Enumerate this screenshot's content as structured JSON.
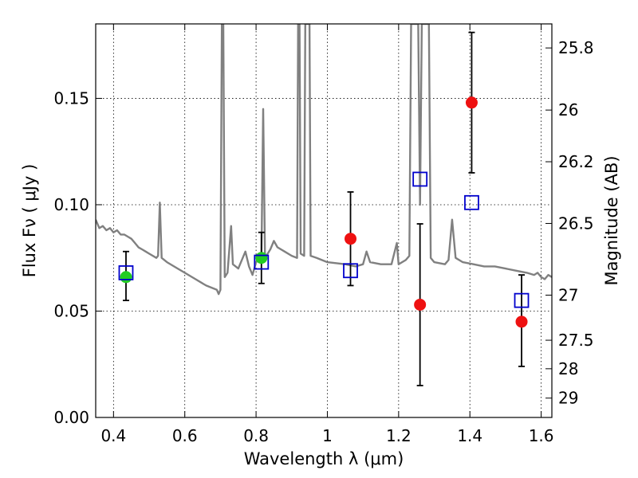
{
  "chart_data": {
    "type": "scatter",
    "xlabel": "Wavelength  λ (μm)",
    "ylabel": "Flux  Fν ( μJy )",
    "y2label": "Magnitude (AB)",
    "xlim": [
      0.35,
      1.63
    ],
    "ylim": [
      0.0,
      0.185
    ],
    "grid": true,
    "x_ticks": [
      0.4,
      0.6,
      0.8,
      1.0,
      1.2,
      1.4,
      1.6
    ],
    "x_tick_labels": [
      "0.4",
      "0.6",
      "0.8",
      "1",
      "1.2",
      "1.4",
      "1.6"
    ],
    "y_ticks": [
      0.0,
      0.05,
      0.1,
      0.15
    ],
    "y_tick_labels": [
      "0.00",
      "0.05",
      "0.10",
      "0.15"
    ],
    "y2_ticks": [
      {
        "label": "25.8",
        "flux": 0.1737
      },
      {
        "label": "26",
        "flux": 0.1445
      },
      {
        "label": "26.2",
        "flux": 0.1202
      },
      {
        "label": "26.5",
        "flux": 0.0912
      },
      {
        "label": "27",
        "flux": 0.0575
      },
      {
        "label": "27.5",
        "flux": 0.0363
      },
      {
        "label": "28",
        "flux": 0.0229
      },
      {
        "label": "29",
        "flux": 0.0091
      }
    ],
    "template_color": "#808080",
    "template_spectrum": [
      [
        0.35,
        0.093
      ],
      [
        0.36,
        0.089
      ],
      [
        0.37,
        0.09
      ],
      [
        0.38,
        0.088
      ],
      [
        0.39,
        0.089
      ],
      [
        0.4,
        0.087
      ],
      [
        0.41,
        0.088
      ],
      [
        0.42,
        0.086
      ],
      [
        0.43,
        0.086
      ],
      [
        0.44,
        0.085
      ],
      [
        0.45,
        0.084
      ],
      [
        0.46,
        0.082
      ],
      [
        0.47,
        0.08
      ],
      [
        0.48,
        0.079
      ],
      [
        0.49,
        0.078
      ],
      [
        0.5,
        0.077
      ],
      [
        0.52,
        0.075
      ],
      [
        0.525,
        0.076
      ],
      [
        0.53,
        0.101
      ],
      [
        0.535,
        0.075
      ],
      [
        0.55,
        0.073
      ],
      [
        0.58,
        0.07
      ],
      [
        0.6,
        0.068
      ],
      [
        0.63,
        0.065
      ],
      [
        0.66,
        0.062
      ],
      [
        0.69,
        0.06
      ],
      [
        0.695,
        0.058
      ],
      [
        0.7,
        0.06
      ],
      [
        0.704,
        0.185
      ],
      [
        0.708,
        0.185
      ],
      [
        0.712,
        0.066
      ],
      [
        0.72,
        0.068
      ],
      [
        0.73,
        0.09
      ],
      [
        0.735,
        0.072
      ],
      [
        0.75,
        0.07
      ],
      [
        0.77,
        0.078
      ],
      [
        0.78,
        0.071
      ],
      [
        0.79,
        0.067
      ],
      [
        0.8,
        0.073
      ],
      [
        0.815,
        0.075
      ],
      [
        0.82,
        0.145
      ],
      [
        0.825,
        0.075
      ],
      [
        0.84,
        0.079
      ],
      [
        0.85,
        0.083
      ],
      [
        0.86,
        0.08
      ],
      [
        0.88,
        0.078
      ],
      [
        0.9,
        0.076
      ],
      [
        0.915,
        0.075
      ],
      [
        0.918,
        0.185
      ],
      [
        0.922,
        0.185
      ],
      [
        0.925,
        0.077
      ],
      [
        0.935,
        0.076
      ],
      [
        0.938,
        0.185
      ],
      [
        0.942,
        0.185
      ],
      [
        0.946,
        0.185
      ],
      [
        0.95,
        0.185
      ],
      [
        0.953,
        0.076
      ],
      [
        0.97,
        0.075
      ],
      [
        1.0,
        0.073
      ],
      [
        1.05,
        0.072
      ],
      [
        1.08,
        0.071
      ],
      [
        1.1,
        0.072
      ],
      [
        1.11,
        0.078
      ],
      [
        1.12,
        0.073
      ],
      [
        1.15,
        0.072
      ],
      [
        1.18,
        0.072
      ],
      [
        1.195,
        0.082
      ],
      [
        1.2,
        0.072
      ],
      [
        1.22,
        0.074
      ],
      [
        1.23,
        0.076
      ],
      [
        1.235,
        0.185
      ],
      [
        1.245,
        0.185
      ],
      [
        1.255,
        0.185
      ],
      [
        1.26,
        0.1
      ],
      [
        1.265,
        0.185
      ],
      [
        1.275,
        0.185
      ],
      [
        1.285,
        0.185
      ],
      [
        1.29,
        0.075
      ],
      [
        1.3,
        0.073
      ],
      [
        1.33,
        0.072
      ],
      [
        1.34,
        0.074
      ],
      [
        1.35,
        0.093
      ],
      [
        1.36,
        0.075
      ],
      [
        1.38,
        0.073
      ],
      [
        1.41,
        0.072
      ],
      [
        1.44,
        0.071
      ],
      [
        1.47,
        0.071
      ],
      [
        1.5,
        0.07
      ],
      [
        1.53,
        0.069
      ],
      [
        1.56,
        0.068
      ],
      [
        1.58,
        0.067
      ],
      [
        1.59,
        0.068
      ],
      [
        1.6,
        0.066
      ],
      [
        1.61,
        0.065
      ],
      [
        1.62,
        0.067
      ],
      [
        1.63,
        0.066
      ]
    ],
    "series": [
      {
        "marker": "circle",
        "color": "#22cc22",
        "points": [
          {
            "x": 0.435,
            "y": 0.066,
            "err_low": 0.055,
            "err_high": 0.078
          },
          {
            "x": 0.815,
            "y": 0.075,
            "err_low": 0.063,
            "err_high": 0.087
          }
        ]
      },
      {
        "marker": "circle",
        "color": "#ee1111",
        "points": [
          {
            "x": 1.065,
            "y": 0.084,
            "err_low": 0.062,
            "err_high": 0.106
          },
          {
            "x": 1.26,
            "y": 0.053,
            "err_low": 0.015,
            "err_high": 0.091
          },
          {
            "x": 1.405,
            "y": 0.148,
            "err_low": 0.115,
            "err_high": 0.181
          },
          {
            "x": 1.545,
            "y": 0.045,
            "err_low": 0.024,
            "err_high": 0.067
          }
        ]
      },
      {
        "marker": "square",
        "color": "#0000cc",
        "points": [
          {
            "x": 0.435,
            "y": 0.068
          },
          {
            "x": 0.815,
            "y": 0.073
          },
          {
            "x": 1.065,
            "y": 0.069
          },
          {
            "x": 1.26,
            "y": 0.112
          },
          {
            "x": 1.405,
            "y": 0.101
          },
          {
            "x": 1.545,
            "y": 0.055
          }
        ]
      }
    ]
  }
}
